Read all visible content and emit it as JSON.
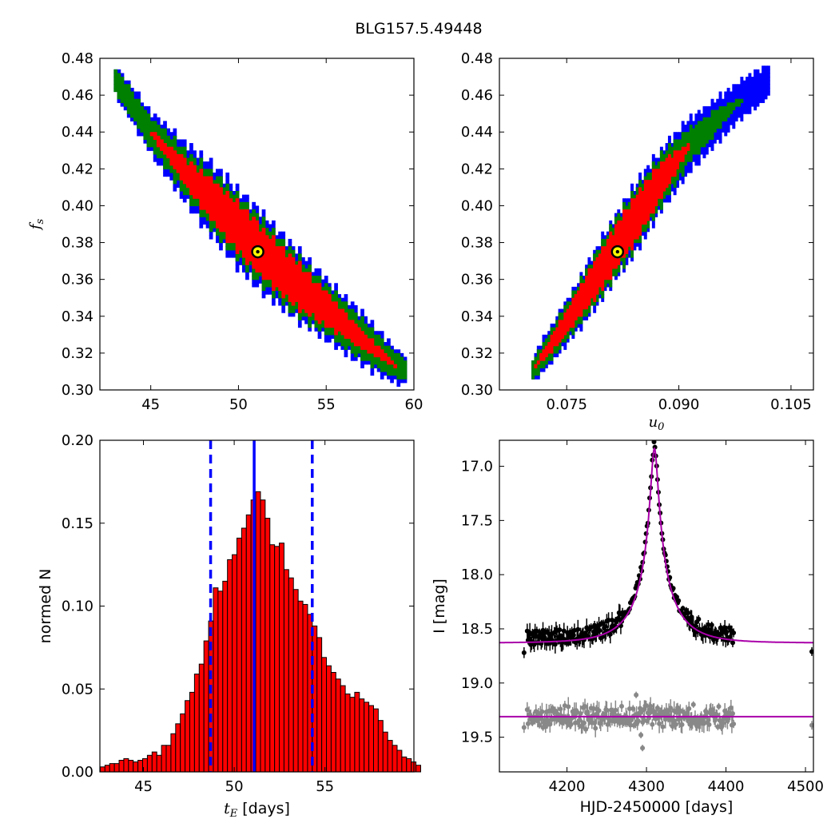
{
  "figure": {
    "title": "BLG157.5.49448"
  },
  "colors": {
    "level_1sigma": "#ff0000",
    "level_2sigma": "#008000",
    "level_3sigma": "#0000ff",
    "best_fit_marker_fill": "#ffff00",
    "model_line": "#aa00aa",
    "residuals": "#888888",
    "data_points": "#000000",
    "hist_bar": "#ff0000",
    "median_line": "#0000ff"
  },
  "chart_data": [
    {
      "id": "panel-tE-fs",
      "type": "heatmap",
      "title": "",
      "xlabel": "",
      "ylabel": "f_s",
      "ylabel_text": "f",
      "ylabel_sub": "s",
      "xlim": [
        42.1,
        60
      ],
      "ylim": [
        0.3,
        0.48
      ],
      "xticks": [
        45,
        50,
        55,
        60
      ],
      "xtick_labels": [
        "45",
        "50",
        "55",
        "60"
      ],
      "yticks": [
        0.3,
        0.32,
        0.34,
        0.36,
        0.38,
        0.4,
        0.42,
        0.44,
        0.46,
        0.48
      ],
      "ytick_labels": [
        "0.30",
        "0.32",
        "0.34",
        "0.36",
        "0.38",
        "0.40",
        "0.42",
        "0.44",
        "0.46",
        "0.48"
      ],
      "grid": false,
      "levels": [
        "1sigma",
        "2sigma",
        "3sigma"
      ],
      "ridge": {
        "x": [
          43.0,
          45.0,
          47.0,
          49.0,
          51.0,
          53.0,
          55.0,
          57.0,
          59.0,
          59.5
        ],
        "y": [
          0.468,
          0.44,
          0.418,
          0.398,
          0.378,
          0.36,
          0.344,
          0.328,
          0.313,
          0.311
        ],
        "half_width_1sigma": [
          0.0,
          0.0,
          0.006,
          0.011,
          0.012,
          0.011,
          0.008,
          0.004,
          0.0,
          0.0
        ],
        "half_width_2sigma": [
          0.005,
          0.007,
          0.011,
          0.015,
          0.016,
          0.015,
          0.012,
          0.01,
          0.006,
          0.004
        ],
        "half_width_3sigma": [
          0.007,
          0.01,
          0.015,
          0.019,
          0.02,
          0.018,
          0.015,
          0.013,
          0.008,
          0.006
        ]
      },
      "best_fit": {
        "x": 51.1,
        "y": 0.375
      }
    },
    {
      "id": "panel-u0-fs",
      "type": "heatmap",
      "title": "",
      "xlabel": "u_0",
      "xlabel_text": "u",
      "xlabel_sub": "0",
      "ylabel": "",
      "xlim": [
        0.066,
        0.108
      ],
      "ylim": [
        0.3,
        0.48
      ],
      "xticks": [
        0.075,
        0.09,
        0.105
      ],
      "xtick_labels": [
        "0.075",
        "0.090",
        "0.105"
      ],
      "yticks": [
        0.3,
        0.32,
        0.34,
        0.36,
        0.38,
        0.4,
        0.42,
        0.44,
        0.46,
        0.48
      ],
      "ytick_labels": [
        "0.30",
        "0.32",
        "0.34",
        "0.36",
        "0.38",
        "0.40",
        "0.42",
        "0.44",
        "0.46",
        "0.48"
      ],
      "grid": false,
      "levels": [
        "1sigma",
        "2sigma",
        "3sigma"
      ],
      "ridge": {
        "x": [
          0.0705,
          0.074,
          0.0775,
          0.081,
          0.0845,
          0.088,
          0.0915,
          0.095,
          0.0985,
          0.102
        ],
        "y": [
          0.311,
          0.331,
          0.352,
          0.374,
          0.395,
          0.416,
          0.433,
          0.446,
          0.458,
          0.468
        ],
        "half_width_1sigma": [
          0.0,
          0.004,
          0.008,
          0.01,
          0.011,
          0.008,
          0.0,
          0.0,
          0.0,
          0.0
        ],
        "half_width_2sigma": [
          0.004,
          0.008,
          0.011,
          0.014,
          0.014,
          0.012,
          0.008,
          0.005,
          0.0,
          0.0
        ],
        "half_width_3sigma": [
          0.006,
          0.01,
          0.013,
          0.016,
          0.017,
          0.015,
          0.013,
          0.011,
          0.009,
          0.008
        ]
      },
      "best_fit": {
        "x": 0.0818,
        "y": 0.375
      }
    },
    {
      "id": "panel-tE-hist",
      "type": "bar",
      "title": "",
      "xlabel": "t_E [days]",
      "xlabel_text": "t",
      "xlabel_sub": "E",
      "xlabel_suffix": "  [days]",
      "ylabel": "normed N",
      "xlim": [
        42.6,
        59.9
      ],
      "ylim": [
        0,
        0.2
      ],
      "xticks": [
        45,
        50,
        55
      ],
      "xtick_labels": [
        "45",
        "50",
        "55"
      ],
      "yticks": [
        0.0,
        0.05,
        0.1,
        0.15,
        0.2
      ],
      "ytick_labels": [
        "0.00",
        "0.05",
        "0.10",
        "0.15",
        "0.20"
      ],
      "grid": false,
      "bin_start": 42.62,
      "bin_width": 0.2596,
      "values": [
        0.003,
        0.004,
        0.005,
        0.005,
        0.007,
        0.008,
        0.007,
        0.006,
        0.007,
        0.008,
        0.01,
        0.012,
        0.01,
        0.016,
        0.016,
        0.023,
        0.029,
        0.035,
        0.043,
        0.048,
        0.059,
        0.065,
        0.079,
        0.091,
        0.111,
        0.109,
        0.115,
        0.128,
        0.131,
        0.141,
        0.147,
        0.155,
        0.164,
        0.169,
        0.164,
        0.153,
        0.137,
        0.136,
        0.138,
        0.122,
        0.117,
        0.11,
        0.103,
        0.101,
        0.095,
        0.088,
        0.081,
        0.069,
        0.064,
        0.06,
        0.056,
        0.052,
        0.047,
        0.045,
        0.048,
        0.044,
        0.042,
        0.04,
        0.038,
        0.031,
        0.024,
        0.019,
        0.016,
        0.013,
        0.009,
        0.008,
        0.006,
        0.004
      ],
      "median": 51.1,
      "confidence_bounds": [
        48.7,
        54.3
      ],
      "median_peak": 0.179
    },
    {
      "id": "panel-lightcurve",
      "type": "scatter",
      "title": "",
      "xlabel": "HJD-2450000 [days]",
      "ylabel": "I [mag]",
      "xlim": [
        4115,
        4510
      ],
      "ylim": [
        19.82,
        16.76
      ],
      "xticks": [
        4200,
        4300,
        4400,
        4500
      ],
      "xtick_labels": [
        "4200",
        "4300",
        "4400",
        "4500"
      ],
      "yticks": [
        17.0,
        17.5,
        18.0,
        18.5,
        19.0,
        19.5
      ],
      "ytick_labels": [
        "17.0",
        "17.5",
        "18.0",
        "18.5",
        "19.0",
        "19.5"
      ],
      "grid": false,
      "model": {
        "t0": 4310,
        "u0": 0.0818,
        "tE": 51.1,
        "fs": 0.375,
        "baseline_mag": 18.63
      },
      "residual_offset_mag": 19.31,
      "observations_span": [
        4145,
        4410
      ],
      "isolated_points": [
        {
          "x": 4146,
          "y": 18.72,
          "y_err": 0.05
        },
        {
          "x": 4508,
          "y": 18.71,
          "y_err": 0.04
        },
        {
          "x": 4293,
          "y": 19.48,
          "y_err": 0.03
        },
        {
          "x": 4295,
          "y": 19.6,
          "y_err": 0.03
        },
        {
          "x": 4287,
          "y": 19.11,
          "y_err": 0.03
        },
        {
          "x": 4146,
          "y": 19.41,
          "y_err": 0.05
        },
        {
          "x": 4508,
          "y": 19.39,
          "y_err": 0.04
        }
      ],
      "series": [
        {
          "name": "",
          "role": "data"
        },
        {
          "name": "",
          "role": "model"
        },
        {
          "name": "",
          "role": "residuals"
        }
      ]
    }
  ]
}
